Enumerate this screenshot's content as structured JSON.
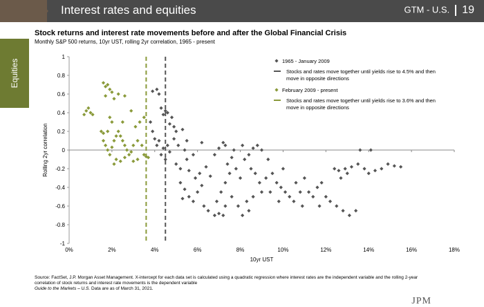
{
  "header": {
    "title": "Interest rates and equities",
    "right_label": "GTM - U.S.",
    "page_number": "19"
  },
  "side_tab": {
    "label": "Equities"
  },
  "chart_data": {
    "type": "scatter",
    "title": "Stock returns and interest rate movements before and after the Global Financial Crisis",
    "subtitle": "Monthly S&P 500 returns, 10yr UST, rolling 2yr correlation, 1965 - present",
    "xlabel": "10yr UST",
    "ylabel": "Rolling 2yr correlation",
    "xlim": [
      0,
      18
    ],
    "ylim": [
      -1,
      1
    ],
    "x_ticks": [
      "0%",
      "2%",
      "4%",
      "6%",
      "8%",
      "10%",
      "12%",
      "14%",
      "16%",
      "18%"
    ],
    "y_ticks": [
      "1",
      "0.8",
      "0.6",
      "0.4",
      "0.2",
      "0",
      "-0.2",
      "-0.4",
      "-0.6",
      "-0.8",
      "-1"
    ],
    "thresholds": [
      {
        "x": 3.6,
        "color": "#8a9a3a",
        "label": "Stocks and rates move together until yields rise to 3.6% and then move in opposite directions"
      },
      {
        "x": 4.5,
        "color": "#555555",
        "label": "Stocks and rates move together until yields rise to 4.5% and then move in opposite directions"
      }
    ],
    "legend_position": "top-right",
    "series": [
      {
        "name": "1965 - January 2009",
        "marker": "diamond",
        "color": "#555555",
        "points": [
          [
            3.9,
            0.63
          ],
          [
            4.1,
            0.65
          ],
          [
            4.2,
            0.6
          ],
          [
            4.3,
            0.45
          ],
          [
            4.4,
            0.38
          ],
          [
            4.5,
            0.42
          ],
          [
            4.6,
            0.4
          ],
          [
            4.8,
            0.35
          ],
          [
            4.7,
            0.28
          ],
          [
            4.9,
            0.25
          ],
          [
            3.8,
            0.3
          ],
          [
            3.9,
            0.2
          ],
          [
            4.0,
            0.12
          ],
          [
            4.1,
            0.05
          ],
          [
            4.2,
            0.1
          ],
          [
            4.4,
            0.02
          ],
          [
            4.3,
            -0.05
          ],
          [
            4.5,
            -0.1
          ],
          [
            4.6,
            0.05
          ],
          [
            4.7,
            -0.02
          ],
          [
            5.0,
            0.2
          ],
          [
            5.3,
            0.22
          ],
          [
            5.1,
            0.05
          ],
          [
            5.4,
            0.0
          ],
          [
            5.0,
            -0.15
          ],
          [
            5.2,
            -0.2
          ],
          [
            5.5,
            -0.1
          ],
          [
            5.8,
            -0.05
          ],
          [
            5.6,
            -0.22
          ],
          [
            5.9,
            -0.3
          ],
          [
            5.2,
            -0.35
          ],
          [
            5.4,
            -0.42
          ],
          [
            5.3,
            -0.52
          ],
          [
            5.6,
            -0.5
          ],
          [
            5.8,
            -0.55
          ],
          [
            6.0,
            -0.45
          ],
          [
            6.2,
            -0.38
          ],
          [
            6.1,
            -0.25
          ],
          [
            6.4,
            -0.18
          ],
          [
            6.6,
            -0.28
          ],
          [
            6.3,
            -0.6
          ],
          [
            6.5,
            -0.65
          ],
          [
            6.8,
            -0.7
          ],
          [
            7.0,
            -0.68
          ],
          [
            7.2,
            -0.7
          ],
          [
            6.9,
            -0.55
          ],
          [
            7.1,
            -0.45
          ],
          [
            7.3,
            -0.35
          ],
          [
            7.5,
            -0.25
          ],
          [
            7.4,
            -0.15
          ],
          [
            6.8,
            -0.05
          ],
          [
            7.0,
            0.02
          ],
          [
            7.3,
            0.05
          ],
          [
            7.7,
            0.0
          ],
          [
            7.6,
            -0.08
          ],
          [
            7.8,
            -0.2
          ],
          [
            8.0,
            -0.3
          ],
          [
            8.2,
            -0.1
          ],
          [
            8.4,
            -0.05
          ],
          [
            8.6,
            0.02
          ],
          [
            8.8,
            0.05
          ],
          [
            9.0,
            0.0
          ],
          [
            8.5,
            -0.2
          ],
          [
            8.7,
            -0.25
          ],
          [
            8.9,
            -0.35
          ],
          [
            9.2,
            -0.3
          ],
          [
            9.5,
            -0.25
          ],
          [
            9.0,
            -0.45
          ],
          [
            8.6,
            -0.5
          ],
          [
            8.3,
            -0.55
          ],
          [
            7.9,
            -0.6
          ],
          [
            8.1,
            -0.7
          ],
          [
            8.4,
            -0.65
          ],
          [
            7.6,
            -0.5
          ],
          [
            7.3,
            -0.6
          ],
          [
            9.4,
            -0.45
          ],
          [
            9.7,
            -0.35
          ],
          [
            9.9,
            -0.4
          ],
          [
            10.1,
            -0.45
          ],
          [
            10.3,
            -0.5
          ],
          [
            10.6,
            -0.35
          ],
          [
            10.8,
            -0.45
          ],
          [
            11.0,
            -0.3
          ],
          [
            11.2,
            -0.45
          ],
          [
            10.5,
            -0.55
          ],
          [
            10.9,
            -0.6
          ],
          [
            11.4,
            -0.5
          ],
          [
            11.6,
            -0.4
          ],
          [
            11.8,
            -0.35
          ],
          [
            12.0,
            -0.5
          ],
          [
            11.7,
            -0.6
          ],
          [
            12.2,
            -0.55
          ],
          [
            12.5,
            -0.6
          ],
          [
            12.8,
            -0.65
          ],
          [
            13.1,
            -0.7
          ],
          [
            13.4,
            -0.65
          ],
          [
            12.4,
            -0.2
          ],
          [
            12.6,
            -0.22
          ],
          [
            12.9,
            -0.2
          ],
          [
            13.2,
            -0.18
          ],
          [
            13.5,
            -0.15
          ],
          [
            13.8,
            -0.2
          ],
          [
            14.0,
            -0.25
          ],
          [
            14.3,
            -0.22
          ],
          [
            14.6,
            -0.2
          ],
          [
            14.9,
            -0.15
          ],
          [
            15.2,
            -0.17
          ],
          [
            15.5,
            -0.18
          ],
          [
            13.6,
            0.0
          ],
          [
            14.1,
            0.0
          ],
          [
            13.0,
            -0.25
          ],
          [
            12.7,
            -0.3
          ],
          [
            9.8,
            -0.55
          ],
          [
            10.0,
            -0.2
          ],
          [
            9.3,
            -0.1
          ],
          [
            8.1,
            0.05
          ],
          [
            7.2,
            0.08
          ],
          [
            6.2,
            0.08
          ],
          [
            5.5,
            0.1
          ],
          [
            4.9,
            0.12
          ]
        ]
      },
      {
        "name": "February 2009 - present",
        "marker": "diamond",
        "color": "#8a9a3a",
        "points": [
          [
            0.7,
            0.38
          ],
          [
            0.8,
            0.42
          ],
          [
            0.9,
            0.45
          ],
          [
            1.0,
            0.4
          ],
          [
            1.1,
            0.38
          ],
          [
            1.6,
            0.72
          ],
          [
            1.7,
            0.68
          ],
          [
            1.8,
            0.7
          ],
          [
            1.9,
            0.65
          ],
          [
            2.0,
            0.62
          ],
          [
            1.7,
            0.58
          ],
          [
            2.1,
            0.55
          ],
          [
            2.3,
            0.6
          ],
          [
            2.6,
            0.58
          ],
          [
            1.5,
            0.2
          ],
          [
            1.6,
            0.18
          ],
          [
            1.8,
            0.2
          ],
          [
            1.6,
            0.1
          ],
          [
            1.7,
            0.05
          ],
          [
            1.8,
            0.0
          ],
          [
            1.9,
            -0.05
          ],
          [
            2.0,
            0.03
          ],
          [
            2.1,
            0.1
          ],
          [
            2.2,
            0.15
          ],
          [
            2.3,
            0.2
          ],
          [
            2.4,
            0.15
          ],
          [
            2.5,
            0.1
          ],
          [
            2.6,
            0.05
          ],
          [
            2.7,
            0.0
          ],
          [
            2.8,
            -0.05
          ],
          [
            2.9,
            -0.02
          ],
          [
            3.0,
            0.05
          ],
          [
            3.2,
            0.1
          ],
          [
            3.4,
            0.05
          ],
          [
            3.5,
            -0.05
          ],
          [
            3.6,
            -0.07
          ],
          [
            3.7,
            -0.08
          ],
          [
            2.2,
            -0.1
          ],
          [
            2.4,
            -0.12
          ],
          [
            2.1,
            -0.15
          ],
          [
            2.6,
            -0.08
          ],
          [
            3.1,
            0.25
          ],
          [
            3.3,
            0.3
          ],
          [
            3.5,
            0.35
          ],
          [
            2.9,
            0.42
          ],
          [
            2.5,
            0.3
          ],
          [
            2.0,
            0.3
          ],
          [
            1.9,
            0.35
          ],
          [
            3.2,
            -0.1
          ],
          [
            3.0,
            -0.12
          ]
        ]
      }
    ]
  },
  "footnote": {
    "source": "Source: FactSet, J.P. Morgan Asset Management. X-intercept for each data set is calculated using a quadratic regression where interest rates are the independent variable and the rolling 2-year correlation of stock returns and interest rate movements is the dependent variable",
    "guide": "Guide to the Markets – U.S.",
    "asof": " Data are as of March 31, 2021."
  },
  "logo": {
    "text": "JPM"
  }
}
